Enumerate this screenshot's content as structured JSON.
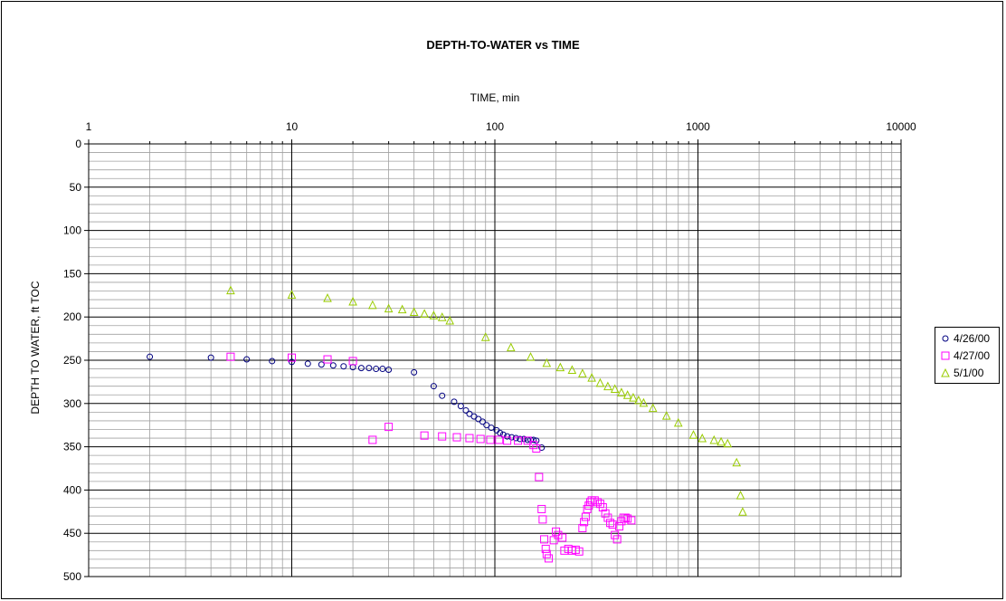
{
  "chart_data": {
    "type": "scatter",
    "title": "DEPTH-TO-WATER vs TIME",
    "xlabel": "TIME, min",
    "ylabel": "DEPTH TO WATER, ft TOC",
    "x_scale": "log",
    "xlim": [
      1,
      10000
    ],
    "ylim": [
      500,
      0
    ],
    "x_ticks": [
      "1",
      "10",
      "100",
      "1000",
      "10000"
    ],
    "y_ticks": [
      "0",
      "50",
      "100",
      "150",
      "200",
      "250",
      "300",
      "350",
      "400",
      "450",
      "500"
    ],
    "x_axis_position": "top",
    "y_inverted": true,
    "grid": true,
    "legend_position": "right",
    "series": [
      {
        "name": "4/26/00",
        "marker": "circle",
        "color": "#000080",
        "points": [
          [
            2,
            246
          ],
          [
            4,
            247
          ],
          [
            6,
            249
          ],
          [
            8,
            251
          ],
          [
            10,
            252
          ],
          [
            12,
            254
          ],
          [
            14,
            255
          ],
          [
            16,
            256
          ],
          [
            18,
            257
          ],
          [
            20,
            258
          ],
          [
            22,
            259
          ],
          [
            24,
            259
          ],
          [
            26,
            260
          ],
          [
            28,
            260
          ],
          [
            30,
            261
          ],
          [
            40,
            264
          ],
          [
            50,
            280
          ],
          [
            55,
            291
          ],
          [
            63,
            298
          ],
          [
            68,
            303
          ],
          [
            72,
            308
          ],
          [
            75,
            312
          ],
          [
            79,
            315
          ],
          [
            83,
            318
          ],
          [
            87,
            321
          ],
          [
            91,
            325
          ],
          [
            96,
            328
          ],
          [
            102,
            331
          ],
          [
            106,
            334
          ],
          [
            110,
            336
          ],
          [
            115,
            338
          ],
          [
            121,
            339
          ],
          [
            127,
            340
          ],
          [
            133,
            341
          ],
          [
            139,
            341
          ],
          [
            145,
            342
          ],
          [
            150,
            342
          ],
          [
            155,
            342
          ],
          [
            160,
            343
          ],
          [
            170,
            351
          ]
        ]
      },
      {
        "name": "4/27/00",
        "marker": "square",
        "color": "#ff00ff",
        "points": [
          [
            5,
            246
          ],
          [
            10,
            247
          ],
          [
            15,
            249
          ],
          [
            20,
            251
          ],
          [
            25,
            342
          ],
          [
            30,
            327
          ],
          [
            45,
            337
          ],
          [
            55,
            338
          ],
          [
            65,
            339
          ],
          [
            75,
            340
          ],
          [
            85,
            341
          ],
          [
            95,
            342
          ],
          [
            105,
            342
          ],
          [
            115,
            343
          ],
          [
            130,
            343
          ],
          [
            145,
            343
          ],
          [
            155,
            348
          ],
          [
            160,
            352
          ],
          [
            165,
            385
          ],
          [
            170,
            422
          ],
          [
            172,
            434
          ],
          [
            175,
            457
          ],
          [
            178,
            468
          ],
          [
            180,
            474
          ],
          [
            184,
            479
          ],
          [
            195,
            458
          ],
          [
            200,
            448
          ],
          [
            205,
            452
          ],
          [
            215,
            455
          ],
          [
            220,
            470
          ],
          [
            230,
            468
          ],
          [
            240,
            470
          ],
          [
            250,
            469
          ],
          [
            260,
            471
          ],
          [
            270,
            444
          ],
          [
            275,
            437
          ],
          [
            280,
            431
          ],
          [
            285,
            422
          ],
          [
            290,
            418
          ],
          [
            295,
            414
          ],
          [
            300,
            412
          ],
          [
            310,
            412
          ],
          [
            320,
            414
          ],
          [
            330,
            416
          ],
          [
            340,
            420
          ],
          [
            350,
            427
          ],
          [
            360,
            432
          ],
          [
            370,
            438
          ],
          [
            380,
            440
          ],
          [
            390,
            452
          ],
          [
            400,
            457
          ],
          [
            410,
            442
          ],
          [
            420,
            436
          ],
          [
            430,
            432
          ],
          [
            440,
            432
          ],
          [
            450,
            433
          ],
          [
            470,
            435
          ]
        ]
      },
      {
        "name": "5/1/00",
        "marker": "triangle",
        "color": "#99cc00",
        "points": [
          [
            5,
            169
          ],
          [
            10,
            174
          ],
          [
            15,
            178
          ],
          [
            20,
            182
          ],
          [
            25,
            186
          ],
          [
            30,
            190
          ],
          [
            35,
            191
          ],
          [
            40,
            194
          ],
          [
            45,
            196
          ],
          [
            50,
            198
          ],
          [
            55,
            200
          ],
          [
            60,
            204
          ],
          [
            90,
            223
          ],
          [
            120,
            235
          ],
          [
            150,
            246
          ],
          [
            180,
            253
          ],
          [
            210,
            258
          ],
          [
            240,
            261
          ],
          [
            270,
            265
          ],
          [
            300,
            270
          ],
          [
            330,
            276
          ],
          [
            360,
            280
          ],
          [
            390,
            283
          ],
          [
            420,
            287
          ],
          [
            450,
            290
          ],
          [
            480,
            293
          ],
          [
            510,
            296
          ],
          [
            540,
            299
          ],
          [
            600,
            305
          ],
          [
            700,
            314
          ],
          [
            800,
            322
          ],
          [
            950,
            336
          ],
          [
            1050,
            340
          ],
          [
            1200,
            342
          ],
          [
            1300,
            344
          ],
          [
            1400,
            346
          ],
          [
            1550,
            368
          ],
          [
            1620,
            406
          ],
          [
            1660,
            425
          ]
        ]
      }
    ]
  }
}
